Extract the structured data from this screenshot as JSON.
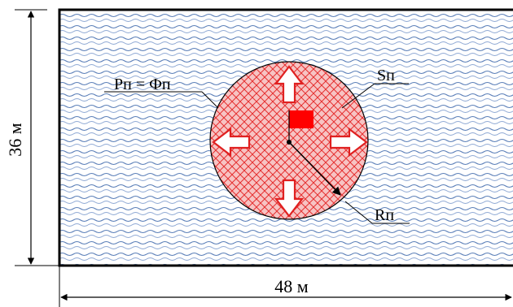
{
  "labels": {
    "height_dim": "36 м",
    "width_dim": "48 м",
    "perimeter": "Pп = Фп",
    "area": "Sп",
    "radius": "Rп"
  },
  "colors": {
    "water_wave": "#5b7fb8",
    "fire_fill": "#f5b5b5",
    "fire_hatch": "#e53030",
    "arrow_outline": "#e02020",
    "origin_square": "#ff0000",
    "border": "#000000"
  },
  "icons": {
    "origin": "red-square-icon",
    "spread_arrows": "hollow-arrow-icon"
  }
}
